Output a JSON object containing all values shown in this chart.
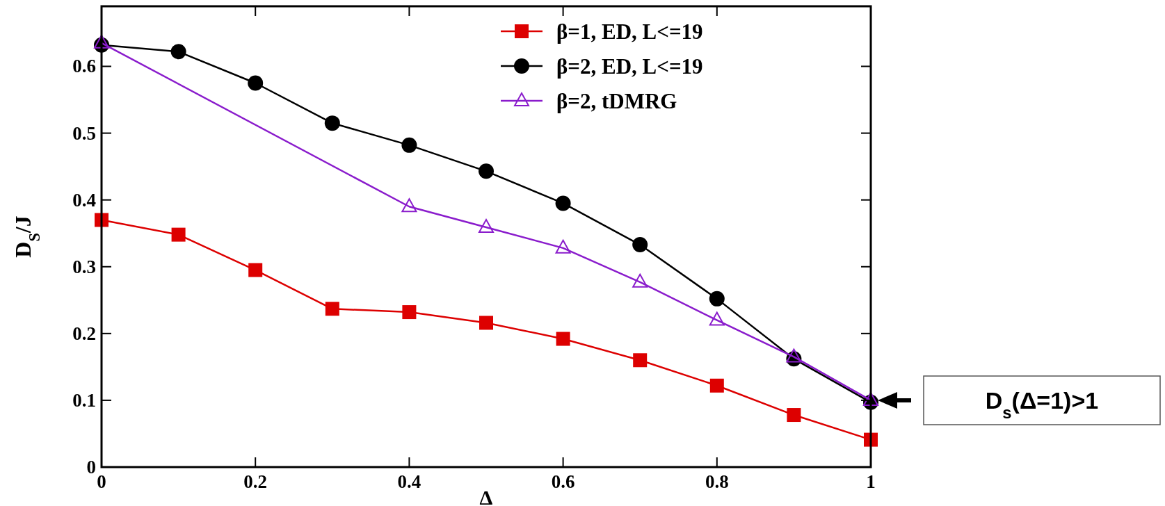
{
  "chart_data": {
    "type": "line",
    "xlabel": "Δ",
    "ylabel": "D$_{S}$/J",
    "xlim": [
      0,
      1
    ],
    "ylim": [
      0,
      0.69
    ],
    "xticks": [
      0,
      0.2,
      0.4,
      0.6,
      0.8,
      1
    ],
    "yticks": [
      0,
      0.1,
      0.2,
      0.3,
      0.4,
      0.5,
      0.6
    ],
    "legend": "top right",
    "grid": false,
    "annotations": [
      "D$_{s}$(Δ=1)>1"
    ],
    "series": [
      {
        "name": "β=1, ED, L<=19",
        "color": "#dd0000",
        "marker": "square",
        "x": [
          0,
          0.1,
          0.2,
          0.3,
          0.4,
          0.5,
          0.6,
          0.7,
          0.8,
          0.9,
          1
        ],
        "values": [
          0.37,
          0.348,
          0.295,
          0.237,
          0.232,
          0.216,
          0.192,
          0.16,
          0.122,
          0.078,
          0.041
        ]
      },
      {
        "name": "β=2, ED, L<=19",
        "color": "#000000",
        "marker": "circle",
        "x": [
          0,
          0.1,
          0.2,
          0.3,
          0.4,
          0.5,
          0.6,
          0.7,
          0.8,
          0.9,
          1
        ],
        "values": [
          0.632,
          0.622,
          0.575,
          0.515,
          0.482,
          0.443,
          0.395,
          0.333,
          0.252,
          0.162,
          0.097
        ]
      },
      {
        "name": "β=2, tDMRG",
        "color": "#8a1ccc",
        "marker": "triangle",
        "x": [
          0,
          0.4,
          0.5,
          0.6,
          0.7,
          0.8,
          0.9,
          1
        ],
        "values": [
          0.635,
          0.39,
          0.359,
          0.328,
          0.277,
          0.22,
          0.165,
          0.1
        ]
      }
    ]
  }
}
